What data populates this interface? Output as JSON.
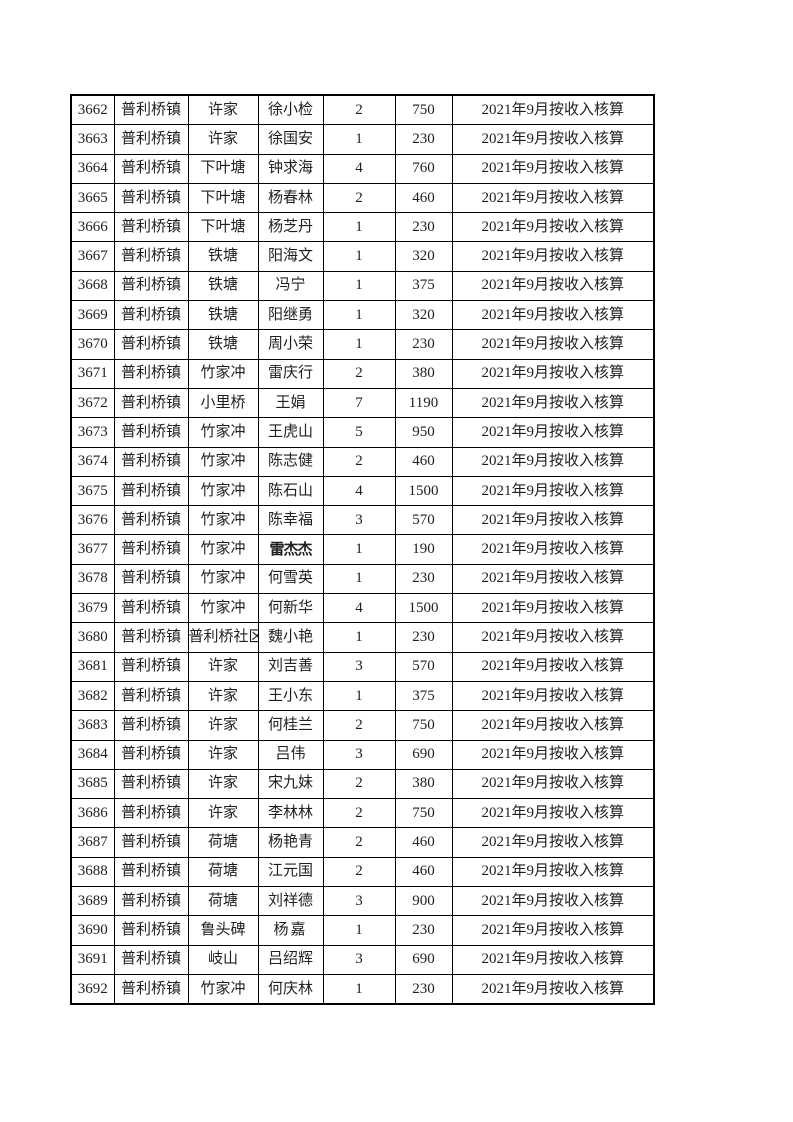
{
  "page": {
    "background_color": "#ffffff",
    "text_color": "#1f1f1f",
    "border_color": "#000000"
  },
  "table": {
    "remark_default": "2021年9月按收入核算",
    "rows": [
      {
        "id": "3662",
        "town": "普利桥镇",
        "village": "许家",
        "name": "徐小检",
        "qty": "2",
        "amount": "750",
        "remark": "2021年9月按收入核算"
      },
      {
        "id": "3663",
        "town": "普利桥镇",
        "village": "许家",
        "name": "徐国安",
        "qty": "1",
        "amount": "230",
        "remark": "2021年9月按收入核算"
      },
      {
        "id": "3664",
        "town": "普利桥镇",
        "village": "下叶塘",
        "name": "钟求海",
        "qty": "4",
        "amount": "760",
        "remark": "2021年9月按收入核算"
      },
      {
        "id": "3665",
        "town": "普利桥镇",
        "village": "下叶塘",
        "name": "杨春林",
        "qty": "2",
        "amount": "460",
        "remark": "2021年9月按收入核算"
      },
      {
        "id": "3666",
        "town": "普利桥镇",
        "village": "下叶塘",
        "name": "杨芝丹",
        "qty": "1",
        "amount": "230",
        "remark": "2021年9月按收入核算"
      },
      {
        "id": "3667",
        "town": "普利桥镇",
        "village": "铁塘",
        "name": "阳海文",
        "qty": "1",
        "amount": "320",
        "remark": "2021年9月按收入核算"
      },
      {
        "id": "3668",
        "town": "普利桥镇",
        "village": "铁塘",
        "name": "冯宁",
        "qty": "1",
        "amount": "375",
        "remark": "2021年9月按收入核算"
      },
      {
        "id": "3669",
        "town": "普利桥镇",
        "village": "铁塘",
        "name": "阳继勇",
        "qty": "1",
        "amount": "320",
        "remark": "2021年9月按收入核算"
      },
      {
        "id": "3670",
        "town": "普利桥镇",
        "village": "铁塘",
        "name": "周小荣",
        "qty": "1",
        "amount": "230",
        "remark": "2021年9月按收入核算"
      },
      {
        "id": "3671",
        "town": "普利桥镇",
        "village": "竹家冲",
        "name": "雷庆行",
        "qty": "2",
        "amount": "380",
        "remark": "2021年9月按收入核算"
      },
      {
        "id": "3672",
        "town": "普利桥镇",
        "village": "小里桥",
        "name": "王娟",
        "qty": "7",
        "amount": "1190",
        "remark": "2021年9月按收入核算"
      },
      {
        "id": "3673",
        "town": "普利桥镇",
        "village": "竹家冲",
        "name": "王虎山",
        "qty": "5",
        "amount": "950",
        "remark": "2021年9月按收入核算"
      },
      {
        "id": "3674",
        "town": "普利桥镇",
        "village": "竹家冲",
        "name": "陈志健",
        "qty": "2",
        "amount": "460",
        "remark": "2021年9月按收入核算"
      },
      {
        "id": "3675",
        "town": "普利桥镇",
        "village": "竹家冲",
        "name": "陈石山",
        "qty": "4",
        "amount": "1500",
        "remark": "2021年9月按收入核算"
      },
      {
        "id": "3676",
        "town": "普利桥镇",
        "village": "竹家冲",
        "name": "陈幸福",
        "qty": "3",
        "amount": "570",
        "remark": "2021年9月按收入核算"
      },
      {
        "id": "3677",
        "town": "普利桥镇",
        "village": "竹家冲",
        "name": "雷杰杰",
        "qty": "1",
        "amount": "190",
        "remark": "2021年9月按收入核算",
        "name_variant": "hei"
      },
      {
        "id": "3678",
        "town": "普利桥镇",
        "village": "竹家冲",
        "name": "何雪英",
        "qty": "1",
        "amount": "230",
        "remark": "2021年9月按收入核算"
      },
      {
        "id": "3679",
        "town": "普利桥镇",
        "village": "竹家冲",
        "name": "何新华",
        "qty": "4",
        "amount": "1500",
        "remark": "2021年9月按收入核算"
      },
      {
        "id": "3680",
        "town": "普利桥镇",
        "village": "普利桥社区",
        "name": "魏小艳",
        "qty": "1",
        "amount": "230",
        "remark": "2021年9月按收入核算"
      },
      {
        "id": "3681",
        "town": "普利桥镇",
        "village": "许家",
        "name": "刘吉善",
        "qty": "3",
        "amount": "570",
        "remark": "2021年9月按收入核算"
      },
      {
        "id": "3682",
        "town": "普利桥镇",
        "village": "许家",
        "name": "王小东",
        "qty": "1",
        "amount": "375",
        "remark": "2021年9月按收入核算"
      },
      {
        "id": "3683",
        "town": "普利桥镇",
        "village": "许家",
        "name": "何桂兰",
        "qty": "2",
        "amount": "750",
        "remark": "2021年9月按收入核算"
      },
      {
        "id": "3684",
        "town": "普利桥镇",
        "village": "许家",
        "name": "吕伟",
        "qty": "3",
        "amount": "690",
        "remark": "2021年9月按收入核算"
      },
      {
        "id": "3685",
        "town": "普利桥镇",
        "village": "许家",
        "name": "宋九妹",
        "qty": "2",
        "amount": "380",
        "remark": "2021年9月按收入核算"
      },
      {
        "id": "3686",
        "town": "普利桥镇",
        "village": "许家",
        "name": "李林林",
        "qty": "2",
        "amount": "750",
        "remark": "2021年9月按收入核算"
      },
      {
        "id": "3687",
        "town": "普利桥镇",
        "village": "荷塘",
        "name": "杨艳青",
        "qty": "2",
        "amount": "460",
        "remark": "2021年9月按收入核算"
      },
      {
        "id": "3688",
        "town": "普利桥镇",
        "village": "荷塘",
        "name": "江元国",
        "qty": "2",
        "amount": "460",
        "remark": "2021年9月按收入核算"
      },
      {
        "id": "3689",
        "town": "普利桥镇",
        "village": "荷塘",
        "name": "刘祥德",
        "qty": "3",
        "amount": "900",
        "remark": "2021年9月按收入核算"
      },
      {
        "id": "3690",
        "town": "普利桥镇",
        "village": "鲁头碑",
        "name": "杨嘉",
        "qty": "1",
        "amount": "230",
        "remark": "2021年9月按收入核算",
        "name_variant": "kai"
      },
      {
        "id": "3691",
        "town": "普利桥镇",
        "village": "岐山",
        "name": "吕绍辉",
        "qty": "3",
        "amount": "690",
        "remark": "2021年9月按收入核算"
      },
      {
        "id": "3692",
        "town": "普利桥镇",
        "village": "竹家冲",
        "name": "何庆林",
        "qty": "1",
        "amount": "230",
        "remark": "2021年9月按收入核算"
      }
    ]
  }
}
